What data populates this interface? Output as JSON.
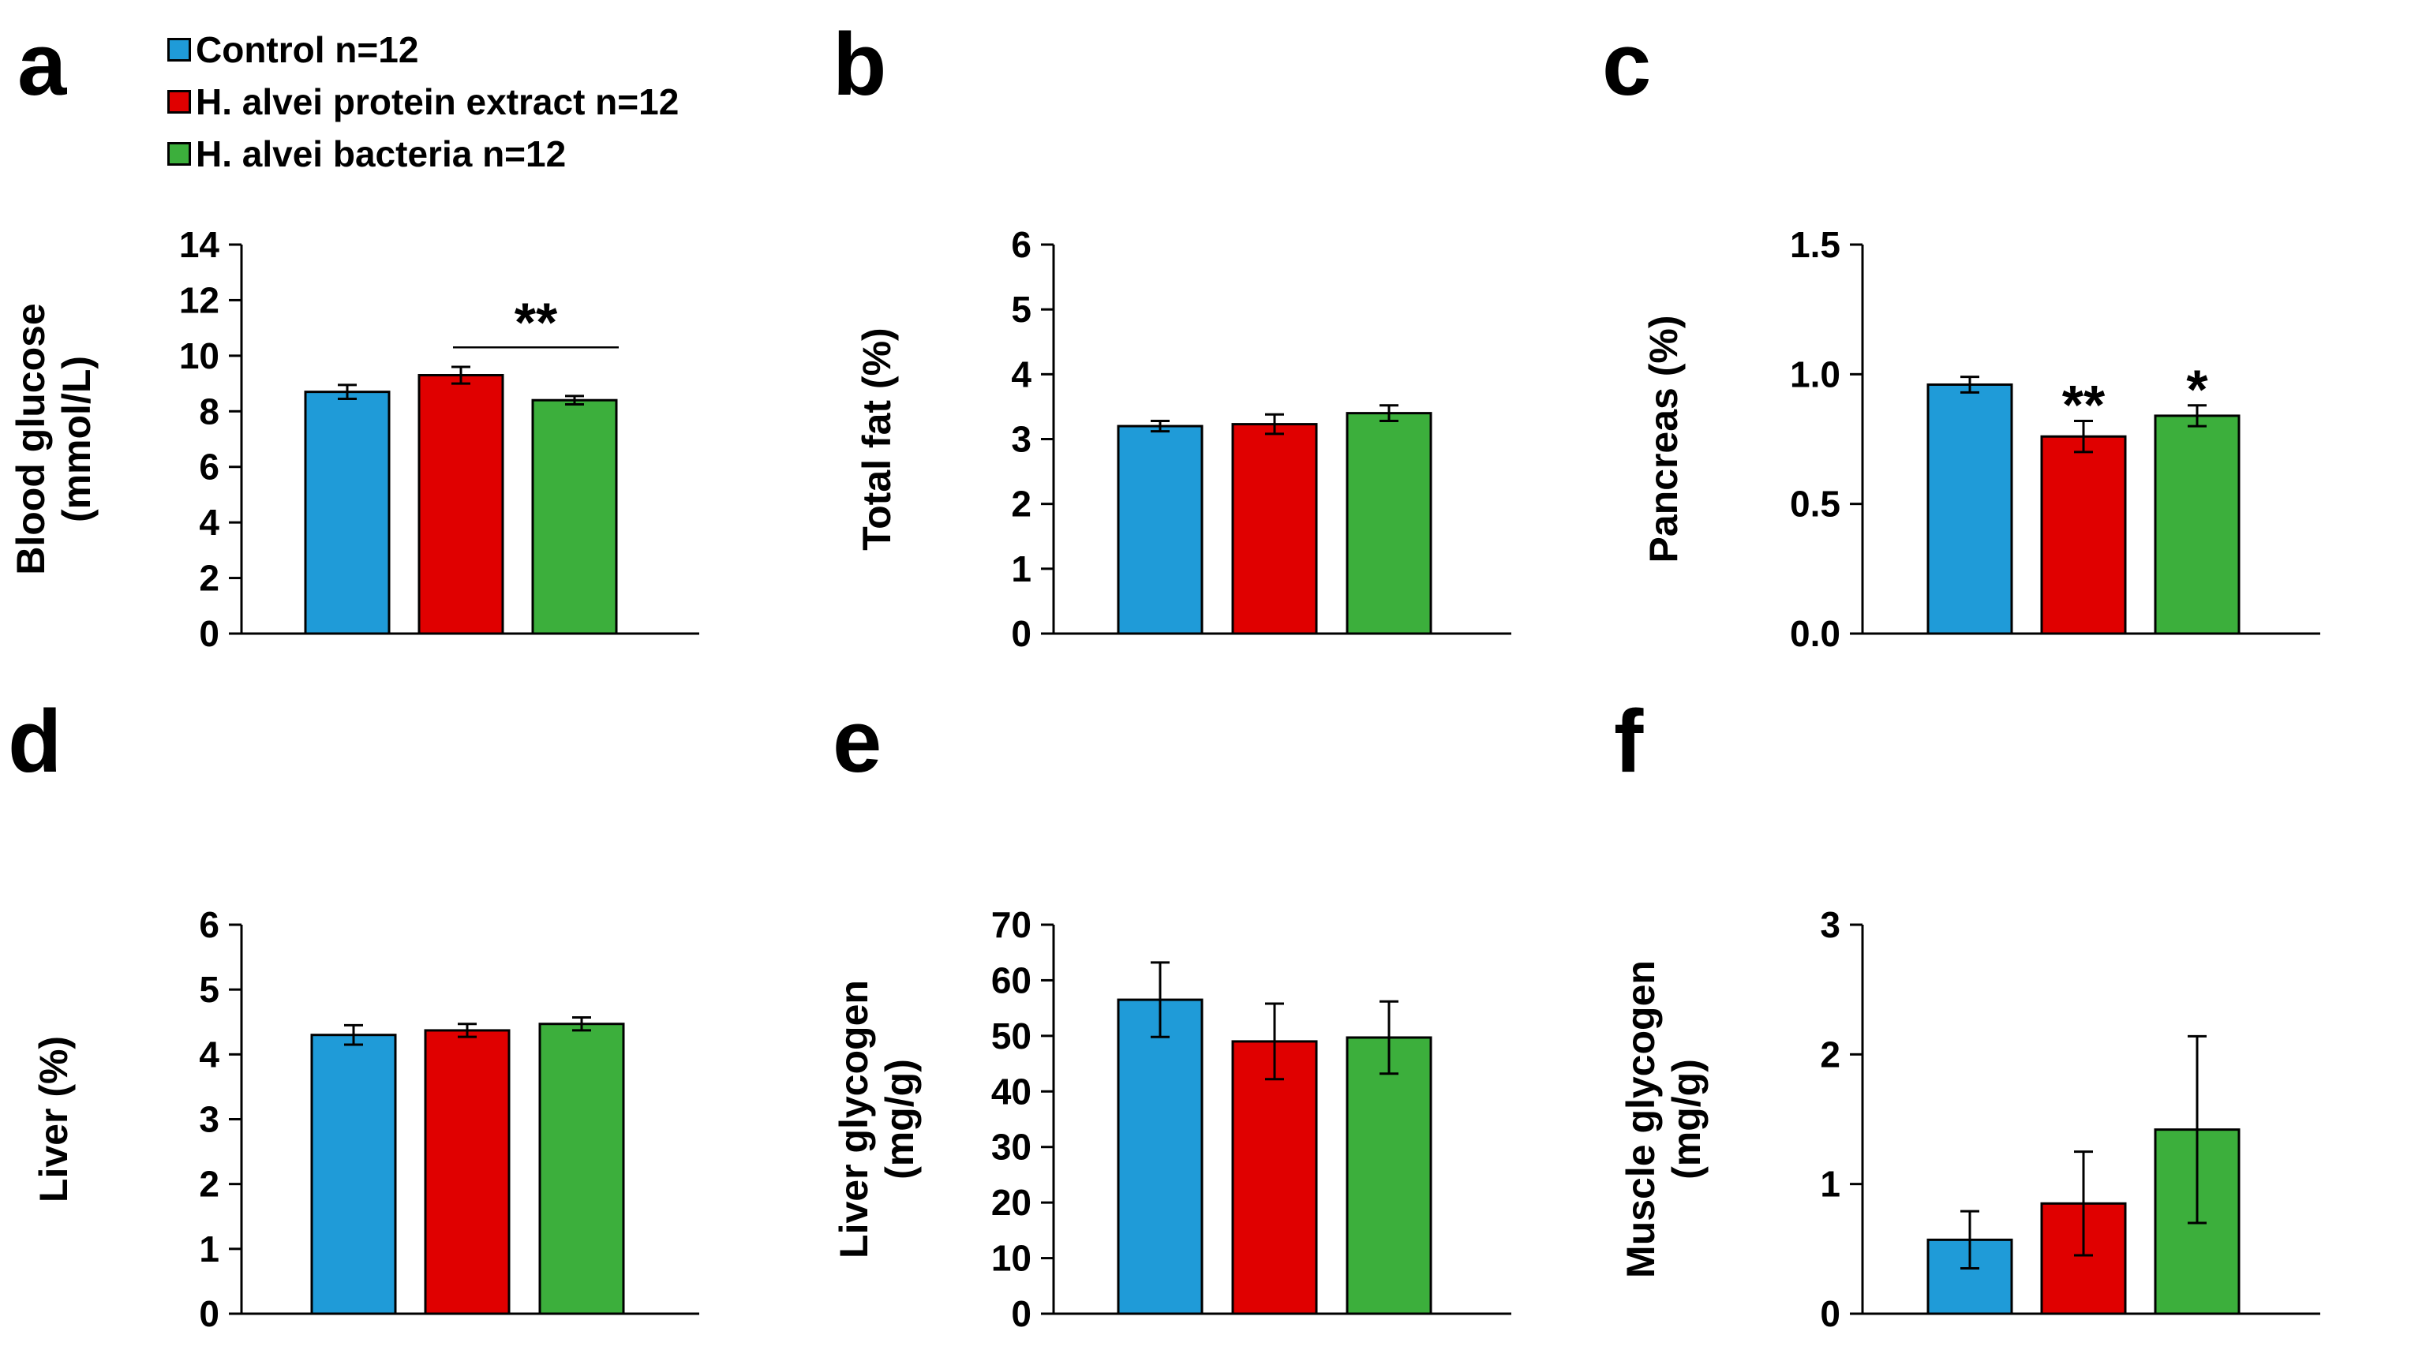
{
  "colors": {
    "control": "#1f9bd8",
    "protein": "#e00000",
    "bacteria": "#3caf3c",
    "axis": "#000000"
  },
  "legend": {
    "items": [
      {
        "label": "Control n=12",
        "color": "#1f9bd8"
      },
      {
        "label": "H. alvei protein extract n=12",
        "color": "#e00000"
      },
      {
        "label": "H. alvei bacteria n=12",
        "color": "#3caf3c"
      }
    ]
  },
  "chart_data": [
    {
      "panel": "a",
      "type": "bar",
      "ylabel": [
        "Blood glucose",
        "(mmol/L)"
      ],
      "ylim": [
        0,
        14
      ],
      "yticks": [
        "0",
        "2",
        "4",
        "6",
        "8",
        "10",
        "12",
        "14"
      ],
      "categories": [
        "Control n=12",
        "H. alvei protein extract n=12",
        "H. alvei bacteria n=12"
      ],
      "values": [
        8.7,
        9.3,
        8.4
      ],
      "errors": [
        0.25,
        0.3,
        0.15
      ],
      "annotations": [
        {
          "text": "**",
          "type": "bracket",
          "from": 1,
          "to": 2,
          "y": 10.3
        }
      ]
    },
    {
      "panel": "b",
      "type": "bar",
      "ylabel": [
        "Total fat (%)"
      ],
      "ylim": [
        0,
        6
      ],
      "yticks": [
        "0",
        "1",
        "2",
        "3",
        "4",
        "5",
        "6"
      ],
      "categories": [
        "Control n=12",
        "H. alvei protein extract n=12",
        "H. alvei bacteria n=12"
      ],
      "values": [
        3.2,
        3.23,
        3.4
      ],
      "errors": [
        0.08,
        0.15,
        0.12
      ],
      "annotations": []
    },
    {
      "panel": "c",
      "type": "bar",
      "ylabel": [
        "Pancreas (%)"
      ],
      "ylim": [
        0,
        1.5
      ],
      "yticks": [
        "0.0",
        "0.5",
        "1.0",
        "1.5"
      ],
      "categories": [
        "Control n=12",
        "H. alvei protein extract n=12",
        "H. alvei bacteria n=12"
      ],
      "values": [
        0.96,
        0.76,
        0.84
      ],
      "errors": [
        0.03,
        0.06,
        0.04
      ],
      "annotations": [
        {
          "text": "**",
          "type": "star",
          "bar": 1,
          "y": 0.87
        },
        {
          "text": "*",
          "type": "star",
          "bar": 2,
          "y": 0.93
        }
      ]
    },
    {
      "panel": "d",
      "type": "bar",
      "ylabel": [
        "Liver (%)"
      ],
      "ylim": [
        0,
        6
      ],
      "yticks": [
        "0",
        "1",
        "2",
        "3",
        "4",
        "5",
        "6"
      ],
      "categories": [
        "Control n=12",
        "H. alvei protein extract n=12",
        "H. alvei bacteria n=12"
      ],
      "values": [
        4.3,
        4.37,
        4.47
      ],
      "errors": [
        0.15,
        0.1,
        0.1
      ],
      "annotations": []
    },
    {
      "panel": "e",
      "type": "bar",
      "ylabel": [
        "Liver glycogen",
        "(mg/g)"
      ],
      "ylim": [
        0,
        70
      ],
      "yticks": [
        "0",
        "10",
        "20",
        "30",
        "40",
        "50",
        "60",
        "70"
      ],
      "categories": [
        "Control n=12",
        "H. alvei protein extract n=12",
        "H. alvei bacteria n=12"
      ],
      "values": [
        56.5,
        49,
        49.7
      ],
      "errors": [
        6.7,
        6.8,
        6.5
      ],
      "annotations": []
    },
    {
      "panel": "f",
      "type": "bar",
      "ylabel": [
        "Muscle glycogen",
        "(mg/g)"
      ],
      "ylim": [
        0,
        3
      ],
      "yticks": [
        "0",
        "1",
        "2",
        "3"
      ],
      "categories": [
        "Control n=12",
        "H. alvei protein extract n=12",
        "H. alvei bacteria n=12"
      ],
      "values": [
        0.57,
        0.85,
        1.42
      ],
      "errors": [
        0.22,
        0.4,
        0.72
      ],
      "annotations": []
    }
  ]
}
